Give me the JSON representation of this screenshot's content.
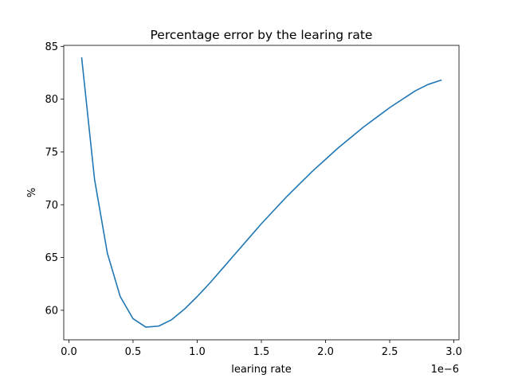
{
  "chart_data": {
    "type": "line",
    "title": "Percentage error by the learing rate",
    "xlabel": "learing rate",
    "ylabel": "%",
    "x_offset_label": "1e−6",
    "xlim": [
      -4e-08,
      3.04e-06
    ],
    "ylim": [
      57.2,
      85.1
    ],
    "grid": false,
    "x_ticks": [
      0.0,
      5e-07,
      1e-06,
      1.5e-06,
      2e-06,
      2.5e-06,
      3e-06
    ],
    "x_tick_labels": [
      "0.0",
      "0.5",
      "1.0",
      "1.5",
      "2.0",
      "2.5",
      "3.0"
    ],
    "y_ticks": [
      60,
      65,
      70,
      75,
      80,
      85
    ],
    "y_tick_labels": [
      "60",
      "65",
      "70",
      "75",
      "80",
      "85"
    ],
    "series": [
      {
        "color": "#1f77b4",
        "x": [
          1e-07,
          2e-07,
          3e-07,
          4e-07,
          5e-07,
          6e-07,
          7e-07,
          8e-07,
          9e-07,
          1e-06,
          1.1e-06,
          1.2e-06,
          1.3e-06,
          1.4e-06,
          1.5e-06,
          1.6e-06,
          1.7e-06,
          1.8e-06,
          1.9e-06,
          2e-06,
          2.1e-06,
          2.2e-06,
          2.3e-06,
          2.4e-06,
          2.5e-06,
          2.6e-06,
          2.7e-06,
          2.8e-06,
          2.9e-06
        ],
        "y": [
          83.9,
          72.4,
          65.4,
          61.3,
          59.2,
          58.4,
          58.5,
          59.1,
          60.1,
          61.3,
          62.6,
          64.0,
          65.4,
          66.8,
          68.2,
          69.5,
          70.8,
          72.0,
          73.2,
          74.3,
          75.4,
          76.4,
          77.4,
          78.3,
          79.2,
          80.0,
          80.8,
          81.4,
          81.8
        ]
      }
    ]
  }
}
